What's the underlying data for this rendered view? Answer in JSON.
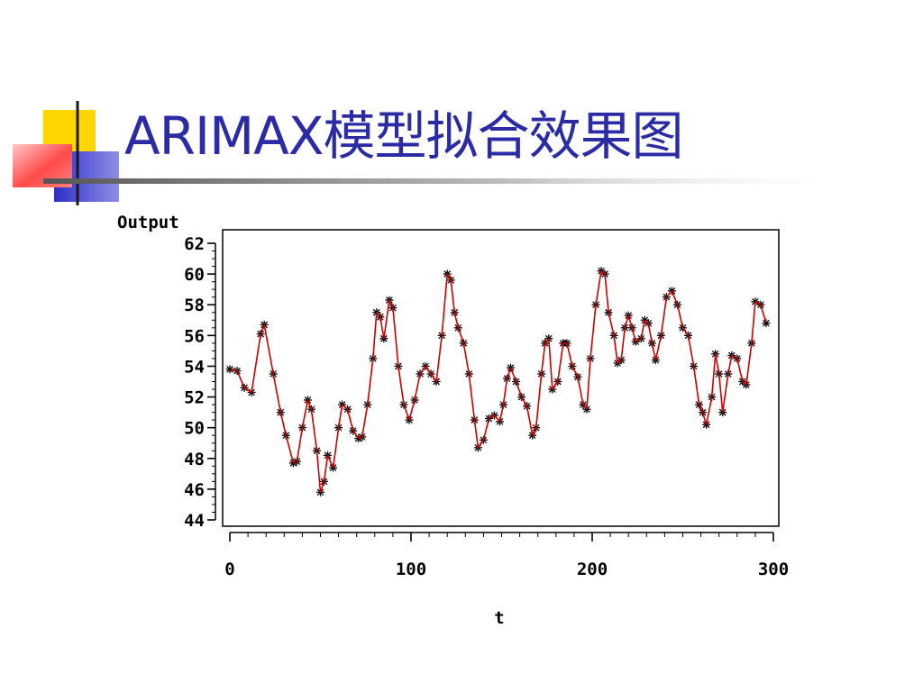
{
  "slide": {
    "title": "ARIMAX模型拟合效果图"
  },
  "colors": {
    "title": "#2b2ba6",
    "fit_line": "#cc0000",
    "observed_marker": "#000000",
    "deco_yellow": "#ffd700",
    "deco_blue": "#2e2ec8",
    "deco_red": "#ff5a5a"
  },
  "chart_data": {
    "type": "line",
    "xlabel": "t",
    "ylabel": "Output",
    "xlim": [
      0,
      300
    ],
    "ylim": [
      44,
      62
    ],
    "xticks": [
      0,
      100,
      200,
      300
    ],
    "yticks": [
      44,
      46,
      48,
      50,
      52,
      54,
      56,
      58,
      60,
      62
    ],
    "grid": false,
    "keypoints": [
      [
        0,
        53.8
      ],
      [
        4,
        53.7
      ],
      [
        8,
        52.6
      ],
      [
        12,
        52.3
      ],
      [
        17,
        56.1
      ],
      [
        19,
        56.7
      ],
      [
        24,
        53.5
      ],
      [
        28,
        51.0
      ],
      [
        31,
        49.5
      ],
      [
        35,
        47.7
      ],
      [
        37,
        47.8
      ],
      [
        40,
        50.0
      ],
      [
        43,
        51.8
      ],
      [
        45,
        51.2
      ],
      [
        48,
        48.5
      ],
      [
        50,
        45.8
      ],
      [
        52,
        46.5
      ],
      [
        54,
        48.2
      ],
      [
        57,
        47.4
      ],
      [
        60,
        50.0
      ],
      [
        62,
        51.5
      ],
      [
        65,
        51.2
      ],
      [
        68,
        49.8
      ],
      [
        71,
        49.3
      ],
      [
        73,
        49.4
      ],
      [
        76,
        51.5
      ],
      [
        79,
        54.5
      ],
      [
        81,
        57.5
      ],
      [
        83,
        57.2
      ],
      [
        85,
        55.8
      ],
      [
        88,
        58.3
      ],
      [
        90,
        57.8
      ],
      [
        93,
        54.0
      ],
      [
        96,
        51.5
      ],
      [
        99,
        50.5
      ],
      [
        102,
        51.8
      ],
      [
        105,
        53.5
      ],
      [
        108,
        54.0
      ],
      [
        111,
        53.5
      ],
      [
        114,
        53.0
      ],
      [
        117,
        56.0
      ],
      [
        120,
        60.0
      ],
      [
        122,
        59.6
      ],
      [
        124,
        57.5
      ],
      [
        126,
        56.5
      ],
      [
        129,
        55.5
      ],
      [
        132,
        53.5
      ],
      [
        135,
        50.5
      ],
      [
        137,
        48.7
      ],
      [
        140,
        49.2
      ],
      [
        143,
        50.6
      ],
      [
        146,
        50.8
      ],
      [
        149,
        50.4
      ],
      [
        151,
        51.5
      ],
      [
        153,
        53.2
      ],
      [
        155,
        53.9
      ],
      [
        158,
        53.0
      ],
      [
        161,
        52.0
      ],
      [
        164,
        51.4
      ],
      [
        167,
        49.5
      ],
      [
        169,
        50.0
      ],
      [
        172,
        53.5
      ],
      [
        174,
        55.5
      ],
      [
        176,
        55.8
      ],
      [
        178,
        52.5
      ],
      [
        181,
        53.0
      ],
      [
        184,
        55.5
      ],
      [
        186,
        55.5
      ],
      [
        189,
        54.0
      ],
      [
        192,
        53.3
      ],
      [
        195,
        51.5
      ],
      [
        197,
        51.2
      ],
      [
        199,
        54.5
      ],
      [
        202,
        58.0
      ],
      [
        205,
        60.2
      ],
      [
        207,
        60.0
      ],
      [
        209,
        57.5
      ],
      [
        212,
        56.0
      ],
      [
        214,
        54.2
      ],
      [
        216,
        54.4
      ],
      [
        218,
        56.5
      ],
      [
        220,
        57.3
      ],
      [
        222,
        56.5
      ],
      [
        224,
        55.6
      ],
      [
        227,
        55.8
      ],
      [
        229,
        57.0
      ],
      [
        231,
        56.8
      ],
      [
        233,
        55.5
      ],
      [
        235,
        54.4
      ],
      [
        238,
        56.0
      ],
      [
        241,
        58.5
      ],
      [
        244,
        58.9
      ],
      [
        247,
        58.0
      ],
      [
        250,
        56.5
      ],
      [
        253,
        56.0
      ],
      [
        256,
        54.0
      ],
      [
        259,
        51.5
      ],
      [
        261,
        51.0
      ],
      [
        263,
        50.2
      ],
      [
        266,
        52.0
      ],
      [
        268,
        54.8
      ],
      [
        270,
        53.5
      ],
      [
        272,
        51.0
      ],
      [
        275,
        53.5
      ],
      [
        277,
        54.7
      ],
      [
        280,
        54.5
      ],
      [
        283,
        53.0
      ],
      [
        285,
        52.8
      ],
      [
        288,
        55.5
      ],
      [
        290,
        58.2
      ],
      [
        293,
        58.0
      ],
      [
        296,
        56.8
      ]
    ]
  }
}
